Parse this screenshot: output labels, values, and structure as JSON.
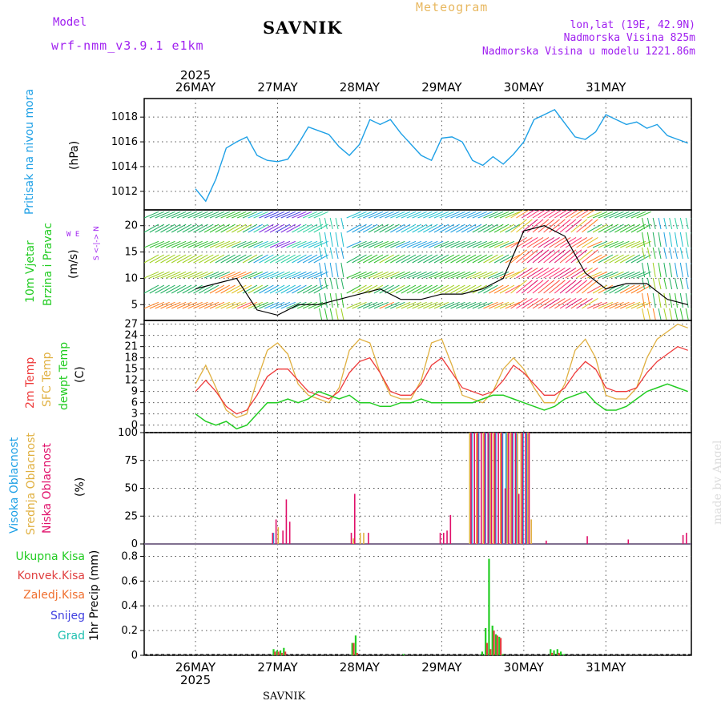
{
  "header": {
    "model_label": "Model",
    "model_name": "wrf-nmm_v3.9.1 e1km",
    "meteogram_label": "Meteogram",
    "station": "SAVNIK",
    "lonlat": "lon,lat (19E, 42.9N)",
    "altitude": "Nadmorska Visina 825m",
    "model_altitude": "Nadmorska Visina u modelu 1221.86m"
  },
  "footer": {
    "station": "SAVNIK",
    "credit": "made by Angel"
  },
  "axis": {
    "year": "2025",
    "dates": [
      "26MAY",
      "27MAY",
      "28MAY",
      "29MAY",
      "30MAY",
      "31MAY"
    ]
  },
  "panel_labels": {
    "pressure": {
      "name": "Pritisak na nivou mora",
      "unit": "(hPa)"
    },
    "wind": {
      "name1": "10m Vjetar",
      "name2": "Brzina i Pravac",
      "unit": "(m/s)",
      "compass_ns": "S <-|-> N",
      "compass_we": "W   E"
    },
    "temp": {
      "t2m": "2m Temp",
      "sfc": "SFC Temp",
      "dew": "dewpt Temp",
      "unit": "(C)"
    },
    "cloud": {
      "high": "Visoka Oblacnost",
      "mid": "Srednja Oblacnost",
      "low": "Niska Oblacnost",
      "unit": "(%)"
    },
    "precip": {
      "total": "Ukupna Kisa",
      "conv": "Konvek.Kisa",
      "frozen": "Zaledj.Kisa",
      "snow": "Snijeg",
      "hail": "Grad",
      "unit": "1hr Precip (mm)"
    }
  },
  "colors": {
    "pressure": "#1ea0e6",
    "t2m": "#ee3a3a",
    "sfc": "#e0b040",
    "dew": "#22cc22",
    "high": "#1ea0e6",
    "mid": "#e0b040",
    "low": "#e0106a",
    "total": "#22cc22",
    "conv": "#e04040",
    "frozen": "#f07030",
    "snow": "#4040e0",
    "hail": "#20c0b0",
    "purple": "#a020f0",
    "gold": "#e8b860"
  },
  "chart_data": [
    {
      "type": "line",
      "title": "Pritisak na nivou mora",
      "ylabel": "(hPa)",
      "ylim": [
        1010.5,
        1019.5
      ],
      "yticks": [
        1012,
        1014,
        1016,
        1018
      ],
      "x_hours": [
        0,
        3,
        6,
        9,
        12,
        15,
        18,
        21,
        24,
        27,
        30,
        33,
        36,
        39,
        42,
        45,
        48,
        51,
        54,
        57,
        60,
        63,
        66,
        69,
        72,
        75,
        78,
        81,
        84,
        87,
        90,
        93,
        96,
        99,
        102,
        105,
        108,
        111,
        114,
        117,
        120,
        123,
        126,
        129,
        132,
        135,
        138,
        141,
        144
      ],
      "series": [
        {
          "name": "Pritisak na nivou mora",
          "values": [
            1012.2,
            1011.2,
            1013.0,
            1015.5,
            1016.0,
            1016.4,
            1014.9,
            1014.5,
            1014.4,
            1014.6,
            1015.8,
            1017.2,
            1016.9,
            1016.6,
            1015.6,
            1014.9,
            1015.8,
            1017.8,
            1017.4,
            1017.8,
            1016.7,
            1015.8,
            1014.9,
            1014.5,
            1016.3,
            1016.4,
            1016.0,
            1014.5,
            1014.1,
            1014.8,
            1014.2,
            1015.0,
            1016.0,
            1017.8,
            1018.2,
            1018.6,
            1017.5,
            1016.4,
            1016.2,
            1016.8,
            1018.2,
            1017.8,
            1017.4,
            1017.6,
            1017.1,
            1017.4,
            1016.5,
            1016.2,
            1015.9
          ]
        }
      ]
    },
    {
      "type": "line",
      "title": "10m Vjetar Brzina i Pravac",
      "ylabel": "(m/s)",
      "ylim": [
        2,
        23
      ],
      "yticks": [
        5,
        10,
        15,
        20
      ],
      "x_hours": [
        0,
        6,
        12,
        18,
        24,
        30,
        36,
        42,
        48,
        54,
        60,
        66,
        72,
        78,
        84,
        90,
        96,
        102,
        108,
        114,
        120,
        126,
        132,
        138,
        144
      ],
      "series": [
        {
          "name": "Brzina",
          "values": [
            8,
            9,
            10,
            4,
            3,
            5,
            5,
            6,
            7,
            8,
            6,
            6,
            7,
            7,
            8,
            10,
            19,
            20,
            18,
            11,
            8,
            9,
            9,
            6,
            5
          ]
        }
      ]
    },
    {
      "type": "line",
      "title": "Temp",
      "ylabel": "(C)",
      "ylim": [
        -2,
        28
      ],
      "yticks": [
        0,
        3,
        6,
        9,
        12,
        15,
        18,
        21,
        24,
        27
      ],
      "x_hours": [
        0,
        3,
        6,
        9,
        12,
        15,
        18,
        21,
        24,
        27,
        30,
        33,
        36,
        39,
        42,
        45,
        48,
        51,
        54,
        57,
        60,
        63,
        66,
        69,
        72,
        75,
        78,
        81,
        84,
        87,
        90,
        93,
        96,
        99,
        102,
        105,
        108,
        111,
        114,
        117,
        120,
        123,
        126,
        129,
        132,
        135,
        138,
        141,
        144
      ],
      "series": [
        {
          "name": "2m Temp",
          "values": [
            9,
            12,
            9,
            5,
            3,
            4,
            8,
            13,
            15,
            15,
            12,
            9,
            8,
            7,
            9,
            14,
            17,
            18,
            14,
            9,
            8,
            8,
            11,
            16,
            18,
            14,
            10,
            9,
            8,
            9,
            12,
            16,
            14,
            11,
            8,
            8,
            10,
            14,
            17,
            15,
            10,
            9,
            9,
            10,
            14,
            17,
            19,
            21,
            20
          ]
        },
        {
          "name": "SFC Temp",
          "values": [
            11,
            16,
            10,
            4,
            2,
            3,
            12,
            20,
            22,
            19,
            11,
            8,
            7,
            6,
            10,
            20,
            23,
            22,
            14,
            8,
            7,
            7,
            12,
            22,
            23,
            16,
            8,
            7,
            6,
            9,
            15,
            18,
            15,
            10,
            6,
            6,
            11,
            20,
            23,
            18,
            8,
            7,
            7,
            10,
            18,
            23,
            25,
            27,
            26
          ]
        },
        {
          "name": "dewpt Temp",
          "values": [
            3,
            1,
            0,
            1,
            -1,
            0,
            3,
            6,
            6,
            7,
            6,
            7,
            9,
            8,
            7,
            8,
            6,
            6,
            5,
            5,
            6,
            6,
            7,
            6,
            6,
            6,
            6,
            6,
            7,
            8,
            8,
            7,
            6,
            5,
            4,
            5,
            7,
            8,
            9,
            6,
            4,
            4,
            5,
            7,
            9,
            10,
            11,
            10,
            9
          ]
        }
      ]
    },
    {
      "type": "bar",
      "title": "Oblacnost",
      "ylabel": "(%)",
      "ylim": [
        0,
        100
      ],
      "yticks": [
        0,
        25,
        50,
        75,
        100
      ],
      "x_hours": [
        22,
        23,
        24,
        25,
        26,
        27,
        28,
        29,
        45,
        46,
        47,
        48,
        49,
        50,
        71,
        72,
        73,
        74,
        80,
        81,
        82,
        83,
        84,
        85,
        86,
        87,
        88,
        89,
        90,
        91,
        92,
        93,
        94,
        95,
        96,
        97,
        98,
        102,
        114,
        126,
        142,
        143
      ],
      "series": [
        {
          "name": "Visoka Oblacnost",
          "values": [
            0,
            10,
            0,
            0,
            0,
            0,
            0,
            0,
            0,
            0,
            0,
            0,
            0,
            0,
            0,
            0,
            0,
            0,
            0,
            100,
            0,
            100,
            0,
            100,
            100,
            0,
            100,
            0,
            100,
            100,
            0,
            100,
            100,
            0,
            100,
            100,
            0,
            0,
            0,
            0,
            0,
            0
          ]
        },
        {
          "name": "Srednja Oblacnost",
          "values": [
            0,
            0,
            15,
            0,
            0,
            0,
            0,
            0,
            0,
            5,
            0,
            10,
            10,
            0,
            0,
            0,
            0,
            0,
            100,
            0,
            100,
            0,
            100,
            0,
            100,
            100,
            0,
            100,
            0,
            100,
            100,
            0,
            100,
            100,
            0,
            100,
            22,
            0,
            0,
            0,
            0,
            0
          ]
        },
        {
          "name": "Niska Oblacnost",
          "values": [
            10,
            22,
            0,
            12,
            40,
            20,
            0,
            0,
            10,
            45,
            0,
            0,
            0,
            10,
            10,
            10,
            12,
            26,
            100,
            100,
            100,
            100,
            100,
            100,
            100,
            100,
            100,
            100,
            50,
            100,
            100,
            100,
            45,
            100,
            100,
            100,
            0,
            3,
            7,
            4,
            8,
            10
          ]
        }
      ]
    },
    {
      "type": "bar",
      "title": "1hr Precip",
      "ylabel": "1hr Precip (mm)",
      "ylim": [
        0,
        0.9
      ],
      "yticks": [
        0,
        0.2,
        0.4,
        0.6,
        0.8
      ],
      "x_hours": [
        23,
        24,
        25,
        26,
        46,
        47,
        61,
        84,
        85,
        86,
        87,
        88,
        89,
        90,
        104,
        105,
        106,
        107,
        108
      ],
      "series": [
        {
          "name": "Ukupna Kisa",
          "values": [
            0.05,
            0.04,
            0.04,
            0.06,
            0.1,
            0.16,
            0.01,
            0.03,
            0.22,
            0.78,
            0.24,
            0.17,
            0.15,
            0.01,
            0.05,
            0.04,
            0.05,
            0.03,
            0.01
          ]
        },
        {
          "name": "Konvek.Kisa",
          "values": [
            0.03,
            0.03,
            0.02,
            0.03,
            0.1,
            0.02,
            0.0,
            0.0,
            0.1,
            0.05,
            0.2,
            0.16,
            0.14,
            0.0,
            0.02,
            0.0,
            0.02,
            0.0,
            0.0
          ]
        }
      ]
    }
  ]
}
